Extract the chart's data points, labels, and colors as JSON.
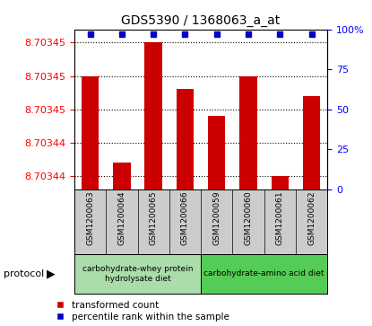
{
  "title": "GDS5390 / 1368063_a_at",
  "samples": [
    "GSM1200063",
    "GSM1200064",
    "GSM1200065",
    "GSM1200066",
    "GSM1200059",
    "GSM1200060",
    "GSM1200061",
    "GSM1200062"
  ],
  "transformed_counts": [
    8.703453,
    8.70344,
    8.703458,
    8.703451,
    8.703447,
    8.703453,
    8.703438,
    8.70345
  ],
  "percentile_ranks": [
    97,
    97,
    97,
    97,
    97,
    97,
    97,
    97
  ],
  "y_min": 8.703436,
  "y_max": 8.70346,
  "y_tick_vals": [
    8.703438,
    8.703443,
    8.703448,
    8.703453,
    8.703458
  ],
  "y_tick_labels": [
    "8.70344",
    "8.70344",
    "8.70345",
    "8.70345",
    "8.70345"
  ],
  "right_tick_vals": [
    0,
    25,
    50,
    75,
    100
  ],
  "right_tick_labels": [
    "0",
    "25",
    "50",
    "75",
    "100%"
  ],
  "protocol_groups": [
    {
      "label": "carbohydrate-whey protein\nhydrolysate diet",
      "indices": [
        0,
        1,
        2,
        3
      ],
      "color": "#aaddaa"
    },
    {
      "label": "carbohydrate-amino acid diet",
      "indices": [
        4,
        5,
        6,
        7
      ],
      "color": "#55cc55"
    }
  ],
  "bar_color": "#cc0000",
  "dot_color": "#0000cc",
  "bar_width": 0.55,
  "bg_color": "#cccccc",
  "legend_red_label": "transformed count",
  "legend_blue_label": "percentile rank within the sample",
  "protocol_label": "protocol"
}
